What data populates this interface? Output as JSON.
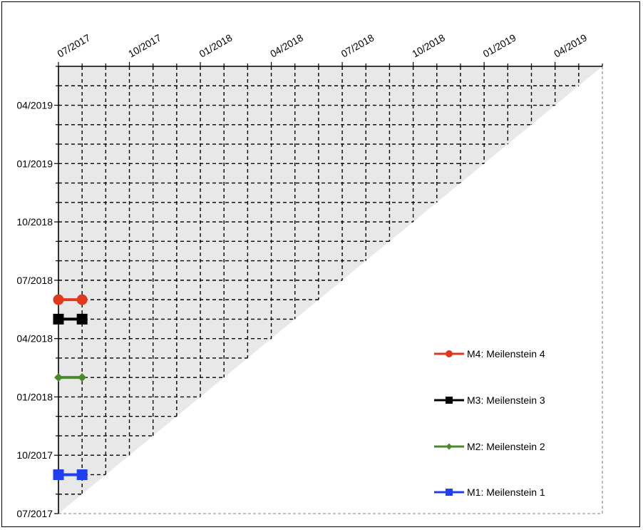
{
  "chart_data": {
    "type": "line",
    "subtype": "milestone-trend-analysis",
    "title": "",
    "xlabel": "",
    "ylabel": "",
    "time_axis": {
      "start": "2017-07",
      "end": "2019-06",
      "month_count": 23,
      "tick_labels": [
        "07/2017",
        "10/2017",
        "01/2018",
        "04/2018",
        "07/2018",
        "10/2018",
        "01/2019",
        "04/2019"
      ],
      "tick_months": [
        "2017-07",
        "2017-10",
        "2018-01",
        "2018-04",
        "2018-07",
        "2018-10",
        "2019-01",
        "2019-04"
      ]
    },
    "x_axis_position": "top",
    "y_axis_position": "left",
    "grid": true,
    "grid_style": "dashed",
    "legend_position": "bottom-right",
    "series": [
      {
        "name": "M4: Meilenstein 4",
        "color": "#e0381c",
        "marker": "circle",
        "points": [
          {
            "x": "2017-07",
            "y": "2018-06"
          },
          {
            "x": "2017-08",
            "y": "2018-06"
          }
        ]
      },
      {
        "name": "M3: Meilenstein 3",
        "color": "#000000",
        "marker": "square",
        "points": [
          {
            "x": "2017-07",
            "y": "2018-05"
          },
          {
            "x": "2017-08",
            "y": "2018-05"
          }
        ]
      },
      {
        "name": "M2: Meilenstein 2",
        "color": "#4a8a2a",
        "marker": "diamond",
        "points": [
          {
            "x": "2017-07",
            "y": "2018-02"
          },
          {
            "x": "2017-08",
            "y": "2018-02"
          }
        ]
      },
      {
        "name": "M1: Meilenstein 1",
        "color": "#1f3ff0",
        "marker": "square",
        "points": [
          {
            "x": "2017-07",
            "y": "2017-09"
          },
          {
            "x": "2017-08",
            "y": "2017-09"
          }
        ]
      }
    ]
  }
}
